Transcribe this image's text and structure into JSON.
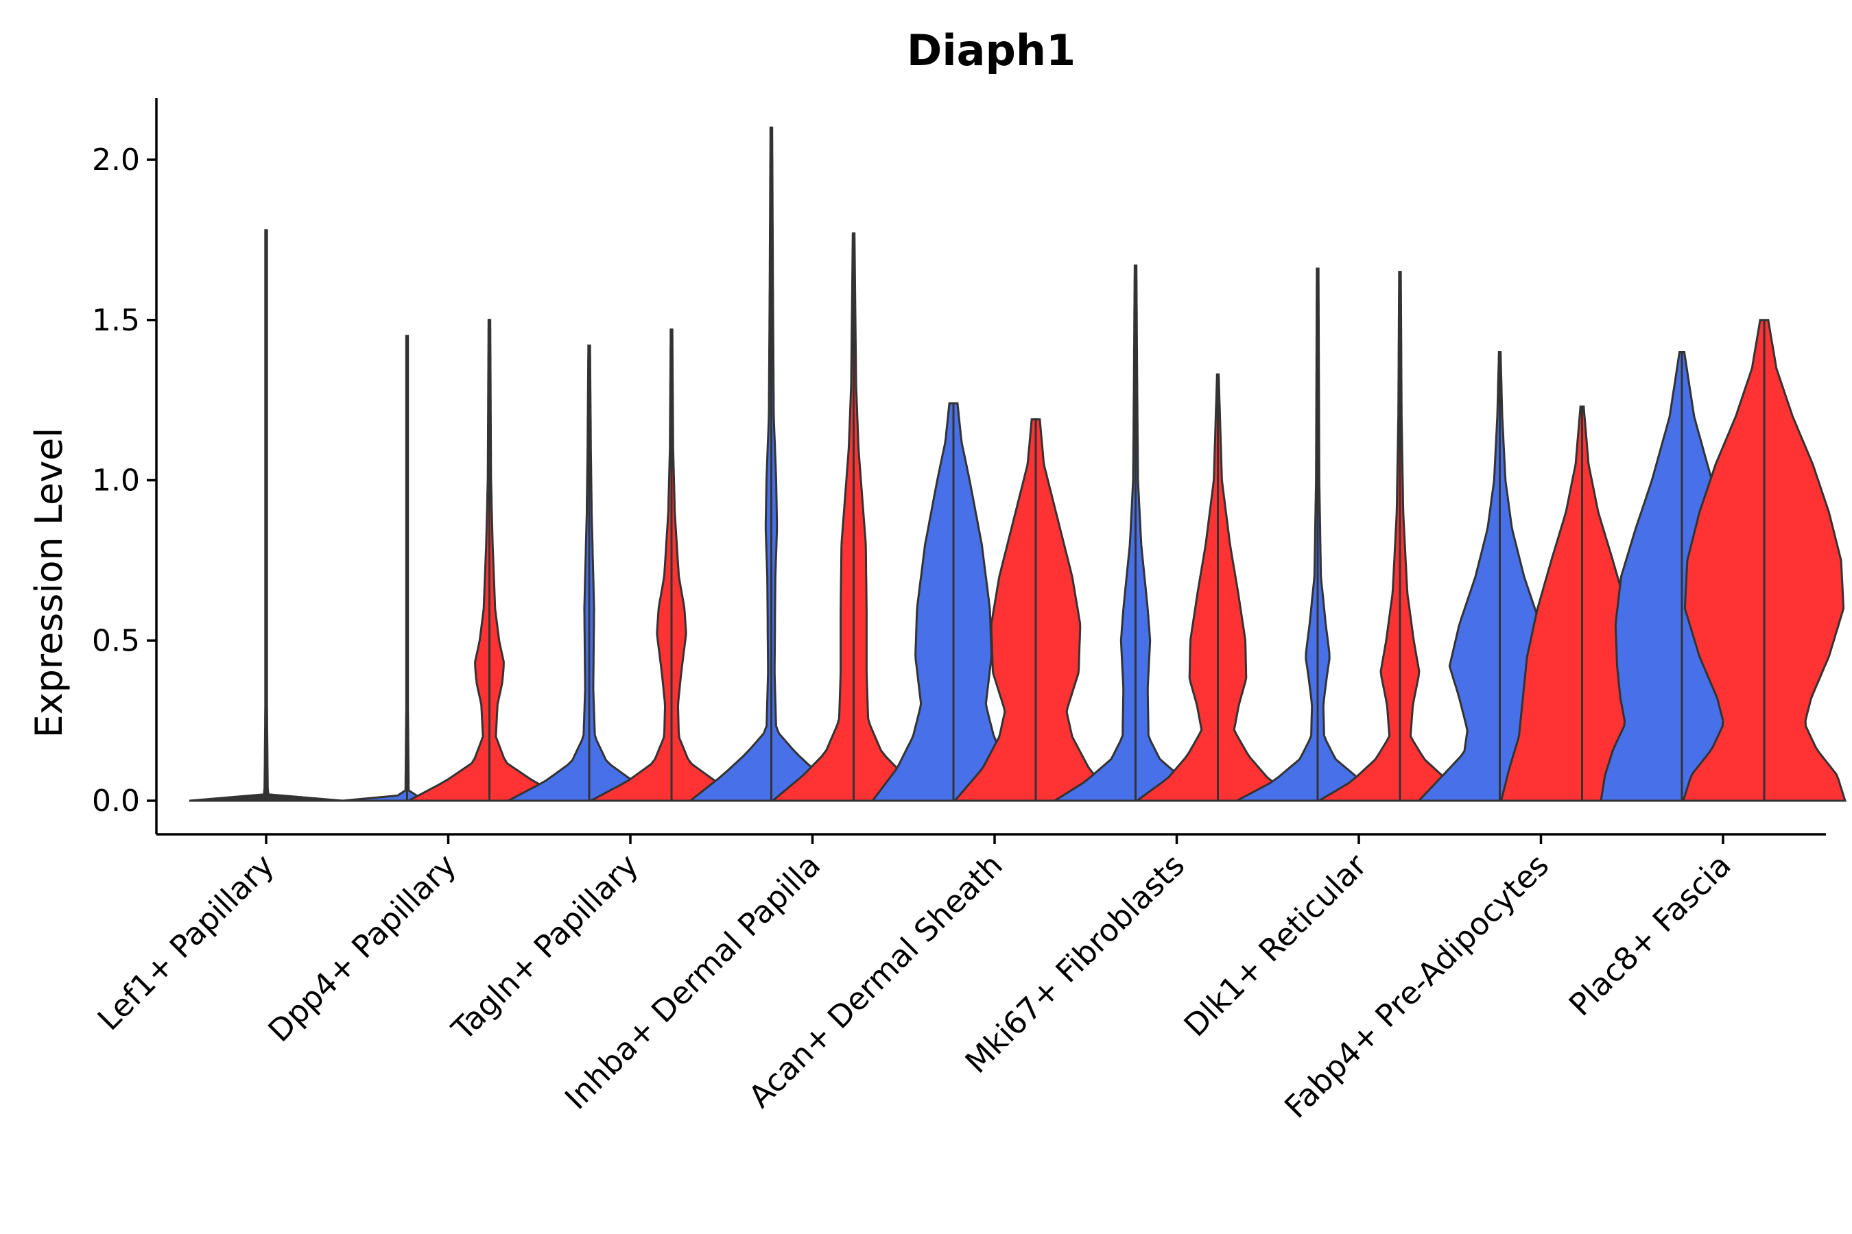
{
  "chart_data": {
    "type": "violin",
    "title": "Diaph1",
    "xlabel": "",
    "ylabel": "Expression Level",
    "ylim": [
      -0.1,
      2.2
    ],
    "yticks": [
      0.0,
      0.5,
      1.0,
      1.5,
      2.0
    ],
    "ytick_labels": [
      "0.0",
      "0.5",
      "1.0",
      "1.5",
      "2.0"
    ],
    "categories": [
      "Lef1+ Papillary",
      "Dpp4+ Papillary",
      "Tagln+ Papillary",
      "Inhba+ Dermal Papilla",
      "Acan+ Dermal Sheath",
      "Mki67+ Fibroblasts",
      "Dlk1+ Reticular",
      "Fabp4+ Pre-Adipocytes",
      "Plac8+ Fascia"
    ],
    "split_colors": {
      "left": "#4870E8",
      "right": "#FF3333",
      "line": "#333333"
    },
    "violins": [
      {
        "category": "Lef1+ Papillary",
        "left": {
          "max": 1.78,
          "profile": [
            [
              0,
              0.95
            ],
            [
              0.005,
              0.5
            ],
            [
              0.02,
              0.02
            ],
            [
              0.3,
              0.01
            ],
            [
              1.78,
              0.01
            ]
          ]
        },
        "right": null
      },
      {
        "category": "Dpp4+ Papillary",
        "left": {
          "max": 1.45,
          "profile": [
            [
              0,
              0.8
            ],
            [
              0.005,
              0.4
            ],
            [
              0.02,
              0.02
            ],
            [
              0.3,
              0.01
            ],
            [
              1.45,
              0.01
            ]
          ]
        },
        "right": {
          "max": 1.5,
          "profile": [
            [
              0,
              1
            ],
            [
              0.06,
              0.55
            ],
            [
              0.12,
              0.2
            ],
            [
              0.2,
              0.08
            ],
            [
              0.3,
              0.1
            ],
            [
              0.37,
              0.16
            ],
            [
              0.43,
              0.18
            ],
            [
              0.5,
              0.12
            ],
            [
              0.6,
              0.07
            ],
            [
              0.8,
              0.04
            ],
            [
              1.0,
              0.02
            ],
            [
              1.5,
              0.01
            ]
          ]
        }
      },
      {
        "category": "Tagln+ Papillary",
        "left": {
          "max": 1.42,
          "profile": [
            [
              0,
              1
            ],
            [
              0.06,
              0.55
            ],
            [
              0.12,
              0.22
            ],
            [
              0.2,
              0.07
            ],
            [
              0.35,
              0.05
            ],
            [
              0.6,
              0.06
            ],
            [
              0.7,
              0.05
            ],
            [
              0.9,
              0.03
            ],
            [
              1.1,
              0.02
            ],
            [
              1.42,
              0.01
            ]
          ]
        },
        "right": {
          "max": 1.47,
          "profile": [
            [
              0,
              1
            ],
            [
              0.06,
              0.55
            ],
            [
              0.12,
              0.22
            ],
            [
              0.2,
              0.09
            ],
            [
              0.3,
              0.08
            ],
            [
              0.4,
              0.12
            ],
            [
              0.52,
              0.18
            ],
            [
              0.6,
              0.16
            ],
            [
              0.7,
              0.09
            ],
            [
              0.9,
              0.04
            ],
            [
              1.1,
              0.02
            ],
            [
              1.47,
              0.01
            ]
          ]
        }
      },
      {
        "category": "Inhba+ Dermal Papilla",
        "left": {
          "max": 2.1,
          "profile": [
            [
              0,
              1
            ],
            [
              0.08,
              0.6
            ],
            [
              0.15,
              0.3
            ],
            [
              0.22,
              0.06
            ],
            [
              0.4,
              0.04
            ],
            [
              0.7,
              0.05
            ],
            [
              0.85,
              0.07
            ],
            [
              1.0,
              0.06
            ],
            [
              1.2,
              0.03
            ],
            [
              1.6,
              0.02
            ],
            [
              2.1,
              0.01
            ]
          ]
        },
        "right": {
          "max": 1.77,
          "profile": [
            [
              0,
              1
            ],
            [
              0.08,
              0.62
            ],
            [
              0.15,
              0.35
            ],
            [
              0.25,
              0.18
            ],
            [
              0.4,
              0.16
            ],
            [
              0.6,
              0.16
            ],
            [
              0.8,
              0.15
            ],
            [
              0.9,
              0.12
            ],
            [
              1.1,
              0.06
            ],
            [
              1.3,
              0.03
            ],
            [
              1.77,
              0.01
            ]
          ]
        }
      },
      {
        "category": "Acan+ Dermal Sheath",
        "left": {
          "max": 1.24,
          "profile": [
            [
              0,
              1
            ],
            [
              0.1,
              0.7
            ],
            [
              0.2,
              0.5
            ],
            [
              0.3,
              0.4
            ],
            [
              0.45,
              0.47
            ],
            [
              0.6,
              0.45
            ],
            [
              0.8,
              0.35
            ],
            [
              1.0,
              0.2
            ],
            [
              1.12,
              0.1
            ],
            [
              1.24,
              0.05
            ]
          ]
        },
        "right": {
          "max": 1.19,
          "profile": [
            [
              0,
              1
            ],
            [
              0.1,
              0.66
            ],
            [
              0.2,
              0.45
            ],
            [
              0.28,
              0.38
            ],
            [
              0.4,
              0.53
            ],
            [
              0.55,
              0.55
            ],
            [
              0.7,
              0.45
            ],
            [
              0.9,
              0.25
            ],
            [
              1.05,
              0.1
            ],
            [
              1.19,
              0.05
            ]
          ]
        }
      },
      {
        "category": "Mki67+ Fibroblasts",
        "left": {
          "max": 1.67,
          "profile": [
            [
              0,
              1
            ],
            [
              0.06,
              0.62
            ],
            [
              0.13,
              0.3
            ],
            [
              0.2,
              0.16
            ],
            [
              0.35,
              0.15
            ],
            [
              0.5,
              0.18
            ],
            [
              0.6,
              0.15
            ],
            [
              0.8,
              0.07
            ],
            [
              1.0,
              0.03
            ],
            [
              1.3,
              0.02
            ],
            [
              1.67,
              0.01
            ]
          ]
        },
        "right": {
          "max": 1.33,
          "profile": [
            [
              0,
              1
            ],
            [
              0.07,
              0.62
            ],
            [
              0.14,
              0.38
            ],
            [
              0.22,
              0.2
            ],
            [
              0.3,
              0.26
            ],
            [
              0.38,
              0.35
            ],
            [
              0.5,
              0.34
            ],
            [
              0.65,
              0.25
            ],
            [
              0.8,
              0.15
            ],
            [
              1.0,
              0.05
            ],
            [
              1.33,
              0.01
            ]
          ]
        }
      },
      {
        "category": "Dlk1+ Reticular",
        "left": {
          "max": 1.66,
          "profile": [
            [
              0,
              1
            ],
            [
              0.06,
              0.55
            ],
            [
              0.13,
              0.22
            ],
            [
              0.2,
              0.08
            ],
            [
              0.3,
              0.07
            ],
            [
              0.4,
              0.12
            ],
            [
              0.45,
              0.15
            ],
            [
              0.55,
              0.1
            ],
            [
              0.7,
              0.04
            ],
            [
              1.0,
              0.02
            ],
            [
              1.66,
              0.01
            ]
          ]
        },
        "right": {
          "max": 1.65,
          "profile": [
            [
              0,
              1
            ],
            [
              0.06,
              0.6
            ],
            [
              0.13,
              0.3
            ],
            [
              0.2,
              0.13
            ],
            [
              0.3,
              0.16
            ],
            [
              0.4,
              0.24
            ],
            [
              0.5,
              0.17
            ],
            [
              0.65,
              0.09
            ],
            [
              0.9,
              0.04
            ],
            [
              1.2,
              0.02
            ],
            [
              1.65,
              0.01
            ]
          ]
        }
      },
      {
        "category": "Fabp4+ Pre-Adipocytes",
        "left": {
          "max": 1.4,
          "profile": [
            [
              0,
              1
            ],
            [
              0.08,
              0.7
            ],
            [
              0.15,
              0.44
            ],
            [
              0.22,
              0.4
            ],
            [
              0.32,
              0.5
            ],
            [
              0.42,
              0.62
            ],
            [
              0.55,
              0.5
            ],
            [
              0.7,
              0.3
            ],
            [
              0.85,
              0.15
            ],
            [
              1.0,
              0.07
            ],
            [
              1.2,
              0.03
            ],
            [
              1.4,
              0.01
            ]
          ]
        },
        "right": {
          "max": 1.23,
          "profile": [
            [
              0,
              1
            ],
            [
              0.1,
              0.9
            ],
            [
              0.2,
              0.78
            ],
            [
              0.3,
              0.74
            ],
            [
              0.45,
              0.68
            ],
            [
              0.6,
              0.55
            ],
            [
              0.75,
              0.38
            ],
            [
              0.9,
              0.2
            ],
            [
              1.05,
              0.08
            ],
            [
              1.23,
              0.02
            ]
          ]
        }
      },
      {
        "category": "Plac8+ Fascia",
        "left": {
          "max": 1.4,
          "profile": [
            [
              0,
              1
            ],
            [
              0.08,
              0.95
            ],
            [
              0.16,
              0.85
            ],
            [
              0.24,
              0.7
            ],
            [
              0.32,
              0.76
            ],
            [
              0.42,
              0.8
            ],
            [
              0.55,
              0.82
            ],
            [
              0.7,
              0.75
            ],
            [
              0.85,
              0.57
            ],
            [
              1.0,
              0.37
            ],
            [
              1.2,
              0.15
            ],
            [
              1.4,
              0.03
            ]
          ]
        },
        "right": {
          "max": 1.5,
          "profile": [
            [
              0,
              1
            ],
            [
              0.08,
              0.9
            ],
            [
              0.16,
              0.65
            ],
            [
              0.24,
              0.5
            ],
            [
              0.32,
              0.58
            ],
            [
              0.45,
              0.8
            ],
            [
              0.6,
              0.98
            ],
            [
              0.75,
              0.95
            ],
            [
              0.9,
              0.8
            ],
            [
              1.05,
              0.6
            ],
            [
              1.2,
              0.35
            ],
            [
              1.35,
              0.15
            ],
            [
              1.5,
              0.05
            ]
          ]
        }
      }
    ]
  }
}
